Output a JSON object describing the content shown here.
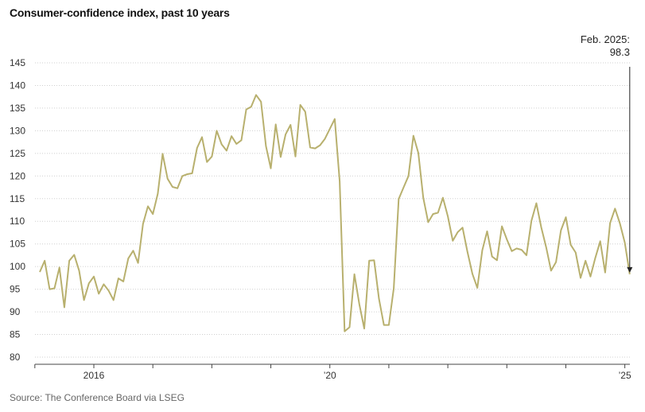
{
  "chart_data": {
    "type": "line",
    "title": "Consumer-confidence index, past 10 years",
    "source": "Source: The Conference Board via LSEG",
    "xlabel": "",
    "ylabel": "",
    "ylim": [
      80,
      145
    ],
    "yticks": [
      80,
      85,
      90,
      95,
      100,
      105,
      110,
      115,
      120,
      125,
      130,
      135,
      140,
      145
    ],
    "xlim": [
      "2015-02",
      "2025-03"
    ],
    "xticks": [
      {
        "date": "2016-01",
        "label": "2016"
      },
      {
        "date": "2020-01",
        "label": "’20"
      },
      {
        "date": "2025-01",
        "label": "’25"
      }
    ],
    "minor_xticks": [
      "2015-01",
      "2017-01",
      "2018-01",
      "2019-01",
      "2021-01",
      "2022-01",
      "2023-01",
      "2024-01"
    ],
    "grid": {
      "horizontal": true,
      "vertical": false
    },
    "line_color": "#b8b06e",
    "annotation": {
      "label_line1": "Feb. 2025:",
      "label_line2": "98.3",
      "date": "2025-02",
      "value": 98.3
    },
    "series": [
      {
        "x": [
          "2015-02",
          "2015-03",
          "2015-04",
          "2015-05",
          "2015-06",
          "2015-07",
          "2015-08",
          "2015-09",
          "2015-10",
          "2015-11",
          "2015-12",
          "2016-01",
          "2016-02",
          "2016-03",
          "2016-04",
          "2016-05",
          "2016-06",
          "2016-07",
          "2016-08",
          "2016-09",
          "2016-10",
          "2016-11",
          "2016-12",
          "2017-01",
          "2017-02",
          "2017-03",
          "2017-04",
          "2017-05",
          "2017-06",
          "2017-07",
          "2017-08",
          "2017-09",
          "2017-10",
          "2017-11",
          "2017-12",
          "2018-01",
          "2018-02",
          "2018-03",
          "2018-04",
          "2018-05",
          "2018-06",
          "2018-07",
          "2018-08",
          "2018-09",
          "2018-10",
          "2018-11",
          "2018-12",
          "2019-01",
          "2019-02",
          "2019-03",
          "2019-04",
          "2019-05",
          "2019-06",
          "2019-07",
          "2019-08",
          "2019-09",
          "2019-10",
          "2019-11",
          "2019-12",
          "2020-01",
          "2020-02",
          "2020-03",
          "2020-04",
          "2020-05",
          "2020-06",
          "2020-07",
          "2020-08",
          "2020-09",
          "2020-10",
          "2020-11",
          "2020-12",
          "2021-01",
          "2021-02",
          "2021-03",
          "2021-04",
          "2021-05",
          "2021-06",
          "2021-07",
          "2021-08",
          "2021-09",
          "2021-10",
          "2021-11",
          "2021-12",
          "2022-01",
          "2022-02",
          "2022-03",
          "2022-04",
          "2022-05",
          "2022-06",
          "2022-07",
          "2022-08",
          "2022-09",
          "2022-10",
          "2022-11",
          "2022-12",
          "2023-01",
          "2023-02",
          "2023-03",
          "2023-04",
          "2023-05",
          "2023-06",
          "2023-07",
          "2023-08",
          "2023-09",
          "2023-10",
          "2023-11",
          "2023-12",
          "2024-01",
          "2024-02",
          "2024-03",
          "2024-04",
          "2024-05",
          "2024-06",
          "2024-07",
          "2024-08",
          "2024-09",
          "2024-10",
          "2024-11",
          "2024-12",
          "2025-01",
          "2025-02"
        ],
        "values": [
          98.8,
          101.3,
          95.0,
          95.2,
          99.8,
          91.0,
          101.3,
          102.6,
          99.1,
          92.6,
          96.3,
          97.8,
          94.0,
          96.1,
          94.7,
          92.6,
          97.4,
          96.7,
          101.8,
          103.5,
          100.8,
          109.4,
          113.3,
          111.6,
          116.1,
          124.9,
          119.4,
          117.6,
          117.3,
          120.0,
          120.4,
          120.6,
          126.2,
          128.6,
          123.1,
          124.3,
          130.0,
          127.0,
          125.6,
          128.8,
          127.1,
          127.9,
          134.7,
          135.3,
          137.9,
          136.4,
          126.6,
          121.7,
          131.4,
          124.2,
          129.2,
          131.3,
          124.3,
          135.7,
          134.2,
          126.3,
          126.1,
          126.8,
          128.2,
          130.4,
          132.6,
          118.8,
          85.7,
          86.6,
          98.3,
          91.7,
          86.3,
          101.3,
          101.4,
          92.9,
          87.1,
          87.1,
          95.2,
          114.9,
          117.5,
          120.0,
          128.9,
          125.1,
          115.2,
          109.8,
          111.6,
          111.9,
          115.2,
          111.1,
          105.7,
          107.6,
          108.6,
          103.2,
          98.4,
          95.3,
          103.6,
          107.8,
          102.2,
          101.4,
          108.9,
          106.0,
          103.4,
          104.0,
          103.7,
          102.5,
          110.1,
          114.0,
          108.7,
          104.3,
          99.1,
          101.0,
          108.0,
          110.9,
          104.8,
          103.1,
          97.5,
          101.3,
          97.8,
          101.9,
          105.6,
          98.7,
          109.6,
          112.8,
          109.5,
          105.3,
          98.3
        ]
      }
    ]
  }
}
